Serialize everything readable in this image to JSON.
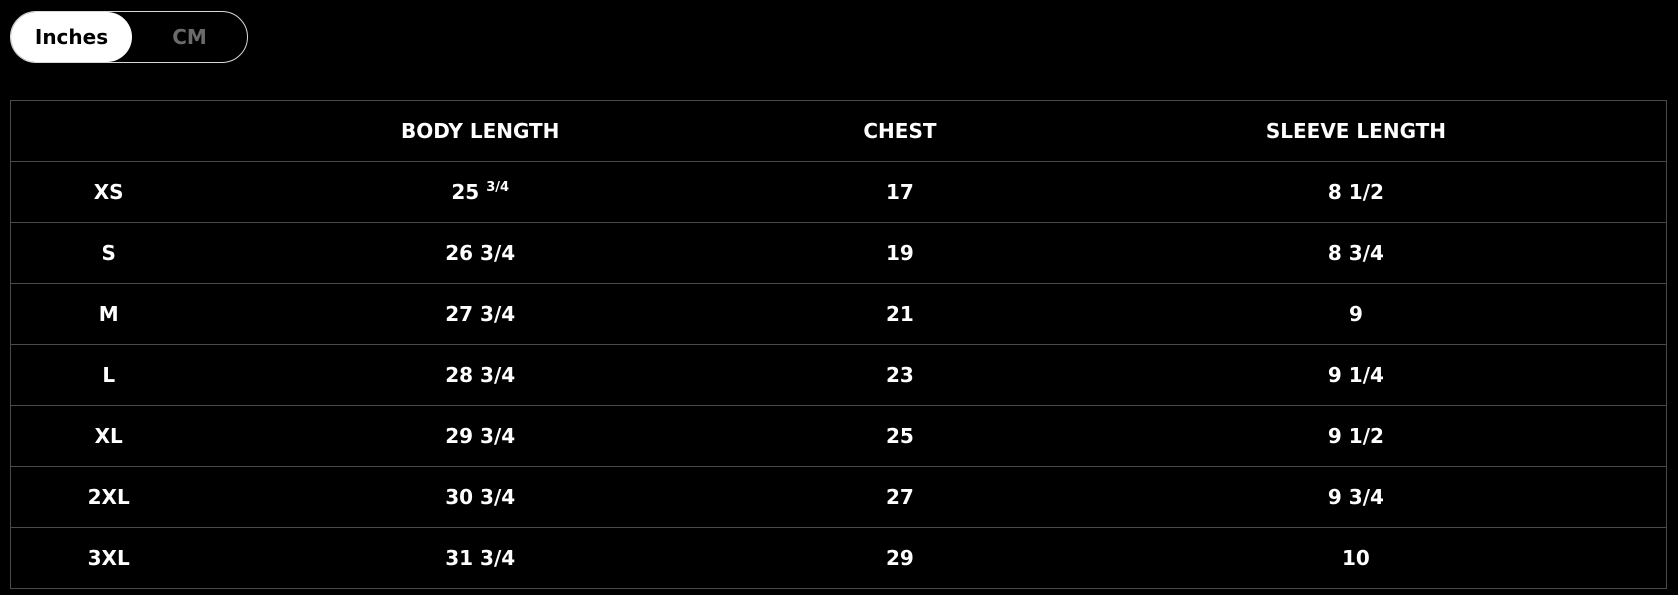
{
  "unit_toggle": {
    "options": [
      "Inches",
      "CM"
    ],
    "selected": "Inches"
  },
  "table": {
    "headers": [
      "",
      "BODY LENGTH",
      "CHEST",
      "SLEEVE LENGTH"
    ],
    "rows": [
      {
        "size": "XS",
        "body_length_whole": "25",
        "body_length_fraction": "3/4",
        "chest": "17",
        "sleeve_length": "8 1/2"
      },
      {
        "size": "S",
        "body_length": "26 3/4",
        "chest": "19",
        "sleeve_length": "8 3/4"
      },
      {
        "size": "M",
        "body_length": "27 3/4",
        "chest": "21",
        "sleeve_length": "9"
      },
      {
        "size": "L",
        "body_length": "28 3/4",
        "chest": "23",
        "sleeve_length": "9 1/4"
      },
      {
        "size": "XL",
        "body_length": "29 3/4",
        "chest": "25",
        "sleeve_length": "9 1/2"
      },
      {
        "size": "2XL",
        "body_length": "30 3/4",
        "chest": "27",
        "sleeve_length": "9 3/4"
      },
      {
        "size": "3XL",
        "body_length": "31 3/4",
        "chest": "29",
        "sleeve_length": "10"
      }
    ]
  }
}
